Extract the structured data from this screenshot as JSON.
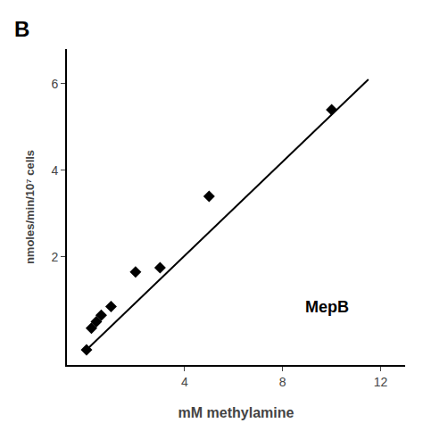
{
  "chart_data": {
    "type": "scatter",
    "x_label": "mM methylamine",
    "y_label": "nmoles/min/10⁷ cells",
    "annotations": [
      "MepB",
      "B"
    ],
    "series": [
      {
        "type": "line",
        "x": [
          0.0,
          11.5
        ],
        "values": [
          -0.15,
          6.1
        ],
        "color": "#000000"
      },
      {
        "type": "scatter",
        "x": [
          0.0,
          0.2,
          0.4,
          0.6,
          1.0,
          2.0,
          3.0,
          5.0,
          10.0
        ],
        "values": [
          -0.15,
          0.35,
          0.5,
          0.65,
          0.85,
          1.65,
          1.75,
          3.4,
          5.4
        ],
        "marker": "diamond",
        "color": "#000000"
      }
    ],
    "xlim": [
      -0.8,
      13.0
    ],
    "ylim": [
      -0.5,
      6.8
    ],
    "xticks": [
      4,
      8,
      12
    ],
    "yticks": [
      2,
      4,
      6
    ],
    "grid": false
  }
}
